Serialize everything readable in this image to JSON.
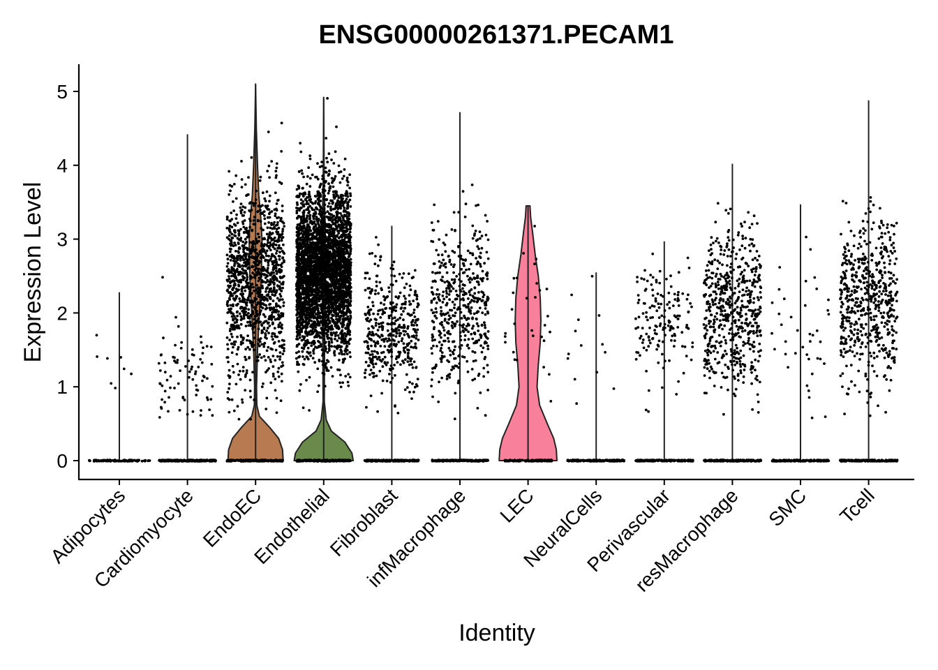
{
  "chart_data": {
    "type": "violin",
    "title": "ENSG00000261371.PECAM1",
    "xlabel": "Identity",
    "ylabel": "Expression Level",
    "ylim": [
      -0.25,
      5.4
    ],
    "yticks": [
      0,
      1,
      2,
      3,
      4,
      5
    ],
    "ytick_labels": [
      "0",
      "1",
      "2",
      "3",
      "4",
      "5"
    ],
    "legend": "none",
    "grid": false,
    "categories": [
      {
        "name": "Adipocytes",
        "max": 2.28,
        "zero_count": 30,
        "expr_count": 8,
        "expr_mean": 1.45,
        "expr_sd": 0.35,
        "spread": 0.45,
        "color": "",
        "violin": []
      },
      {
        "name": "Cardiomyocyte",
        "max": 4.42,
        "zero_count": 70,
        "expr_count": 80,
        "expr_mean": 1.15,
        "expr_sd": 0.35,
        "spread": 0.42,
        "color": "",
        "violin": []
      },
      {
        "name": "EndoEC",
        "max": 5.1,
        "zero_count": 60,
        "expr_count": 1200,
        "expr_mean": 2.4,
        "expr_sd": 0.65,
        "spread": 0.42,
        "color": "#b87a50",
        "violin": [
          [
            0,
            0.43
          ],
          [
            0.15,
            0.42
          ],
          [
            0.3,
            0.36
          ],
          [
            0.45,
            0.22
          ],
          [
            0.6,
            0.06
          ],
          [
            0.75,
            0.02
          ],
          [
            1.0,
            0.015
          ],
          [
            1.5,
            0.03
          ],
          [
            2.0,
            0.06
          ],
          [
            2.5,
            0.09
          ],
          [
            3.0,
            0.1
          ],
          [
            3.3,
            0.08
          ],
          [
            3.6,
            0.05
          ],
          [
            4.0,
            0.03
          ],
          [
            4.5,
            0.012
          ],
          [
            5.1,
            0.0
          ]
        ]
      },
      {
        "name": "Endothelial",
        "max": 4.92,
        "zero_count": 60,
        "expr_count": 3500,
        "expr_mean": 2.55,
        "expr_sd": 0.55,
        "spread": 0.4,
        "color": "#6a8a4c",
        "violin": [
          [
            0,
            0.46
          ],
          [
            0.1,
            0.44
          ],
          [
            0.25,
            0.33
          ],
          [
            0.4,
            0.12
          ],
          [
            0.55,
            0.04
          ],
          [
            0.8,
            0.01
          ],
          [
            1.3,
            0.012
          ],
          [
            2.0,
            0.02
          ],
          [
            2.6,
            0.025
          ],
          [
            3.3,
            0.02
          ],
          [
            3.8,
            0.008
          ],
          [
            4.4,
            0.003
          ],
          [
            4.92,
            0.0
          ]
        ]
      },
      {
        "name": "Fibroblast",
        "max": 3.18,
        "zero_count": 60,
        "expr_count": 420,
        "expr_mean": 1.75,
        "expr_sd": 0.42,
        "spread": 0.4,
        "color": "",
        "violin": []
      },
      {
        "name": "infMacrophage",
        "max": 4.72,
        "zero_count": 60,
        "expr_count": 500,
        "expr_mean": 2.1,
        "expr_sd": 0.55,
        "spread": 0.42,
        "color": "",
        "violin": []
      },
      {
        "name": "LEC",
        "max": 3.45,
        "zero_count": 40,
        "expr_count": 30,
        "expr_mean": 2.05,
        "expr_sd": 0.55,
        "spread": 0.35,
        "color": "#f8809a",
        "violin": [
          [
            0,
            0.45
          ],
          [
            0.15,
            0.44
          ],
          [
            0.3,
            0.4
          ],
          [
            0.5,
            0.3
          ],
          [
            0.75,
            0.18
          ],
          [
            1.0,
            0.14
          ],
          [
            1.3,
            0.16
          ],
          [
            1.6,
            0.19
          ],
          [
            1.9,
            0.2
          ],
          [
            2.2,
            0.19
          ],
          [
            2.5,
            0.16
          ],
          [
            2.8,
            0.11
          ],
          [
            3.1,
            0.07
          ],
          [
            3.3,
            0.04
          ],
          [
            3.45,
            0.03
          ]
        ]
      },
      {
        "name": "NeuralCells",
        "max": 2.55,
        "zero_count": 60,
        "expr_count": 14,
        "expr_mean": 1.7,
        "expr_sd": 0.5,
        "spread": 0.42,
        "color": "",
        "violin": []
      },
      {
        "name": "Perivascular",
        "max": 2.97,
        "zero_count": 60,
        "expr_count": 160,
        "expr_mean": 1.9,
        "expr_sd": 0.4,
        "spread": 0.42,
        "color": "",
        "violin": []
      },
      {
        "name": "resMacrophage",
        "max": 4.02,
        "zero_count": 60,
        "expr_count": 600,
        "expr_mean": 2.05,
        "expr_sd": 0.5,
        "spread": 0.42,
        "color": "",
        "violin": []
      },
      {
        "name": "SMC",
        "max": 3.47,
        "zero_count": 60,
        "expr_count": 40,
        "expr_mean": 1.7,
        "expr_sd": 0.55,
        "spread": 0.42,
        "color": "",
        "violin": []
      },
      {
        "name": "Tcell",
        "max": 4.88,
        "zero_count": 60,
        "expr_count": 600,
        "expr_mean": 2.15,
        "expr_sd": 0.55,
        "spread": 0.42,
        "color": "",
        "violin": []
      }
    ]
  }
}
